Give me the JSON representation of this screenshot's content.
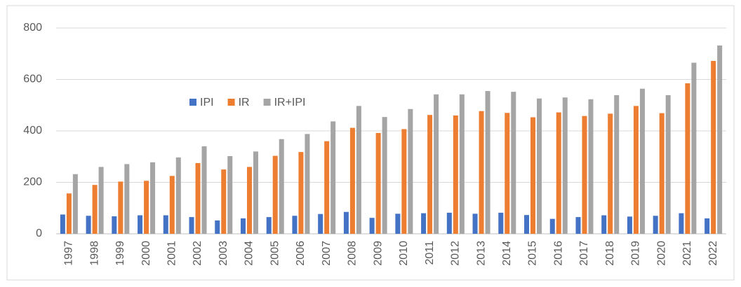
{
  "chart_data": {
    "type": "bar",
    "categories": [
      "1997",
      "1998",
      "1999",
      "2000",
      "2001",
      "2002",
      "2003",
      "2004",
      "2005",
      "2006",
      "2007",
      "2008",
      "2009",
      "2010",
      "2011",
      "2012",
      "2013",
      "2014",
      "2015",
      "2016",
      "2017",
      "2018",
      "2019",
      "2020",
      "2021",
      "2022"
    ],
    "series": [
      {
        "name": "IPI",
        "color": "#4472c4",
        "values": [
          75,
          70,
          68,
          72,
          72,
          65,
          52,
          60,
          65,
          70,
          77,
          85,
          62,
          78,
          80,
          82,
          78,
          82,
          73,
          58,
          65,
          72,
          67,
          70,
          80,
          60
        ]
      },
      {
        "name": "IR",
        "color": "#ed7d31",
        "values": [
          157,
          190,
          203,
          206,
          225,
          275,
          250,
          260,
          303,
          318,
          360,
          412,
          392,
          407,
          462,
          460,
          477,
          470,
          453,
          472,
          458,
          467,
          497,
          469,
          585,
          672
        ]
      },
      {
        "name": "IR+IPI",
        "color": "#a5a5a5",
        "values": [
          232,
          260,
          271,
          278,
          297,
          340,
          302,
          320,
          368,
          388,
          437,
          497,
          454,
          485,
          542,
          542,
          555,
          552,
          526,
          530,
          523,
          539,
          564,
          539,
          665,
          732
        ]
      }
    ],
    "ylim": [
      0,
      800
    ],
    "yticks": [
      0,
      200,
      400,
      600,
      800
    ],
    "grid": true
  }
}
